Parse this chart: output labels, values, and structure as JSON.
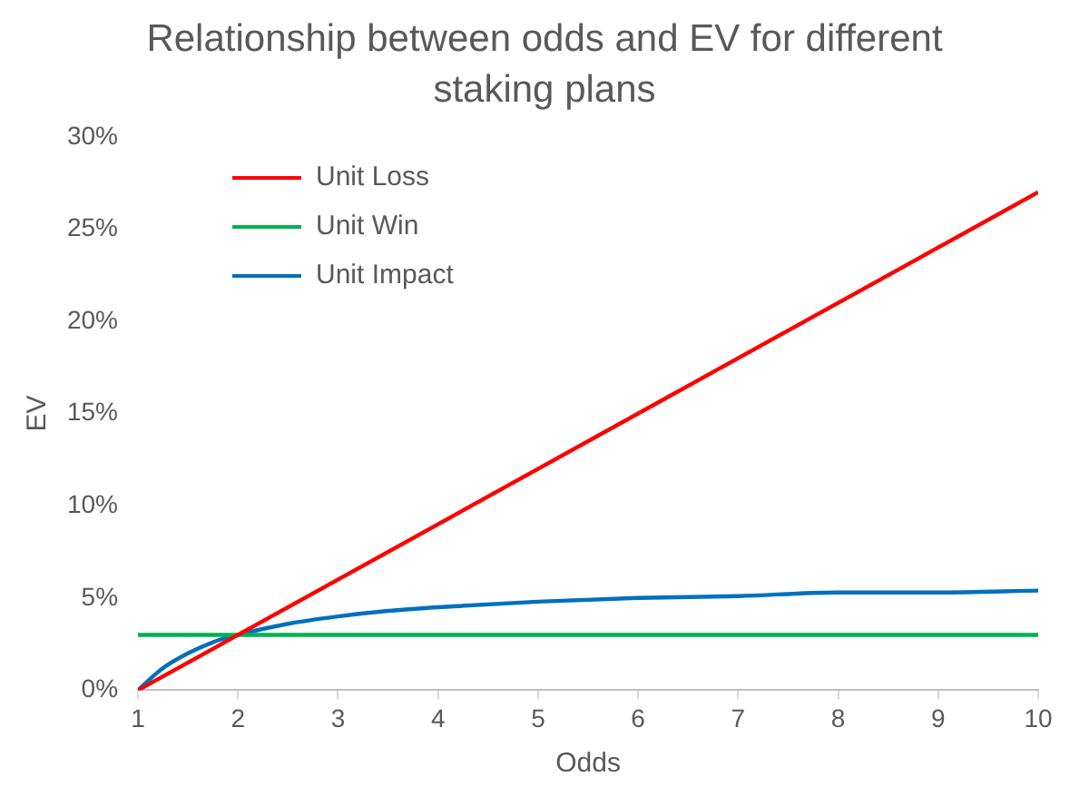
{
  "chart_data": {
    "type": "line",
    "title": "Relationship between odds and EV for different staking plans",
    "xlabel": "Odds",
    "ylabel": "EV",
    "xlim": [
      1,
      10
    ],
    "xticks": [
      1,
      2,
      3,
      4,
      5,
      6,
      7,
      8,
      9,
      10
    ],
    "ylim": [
      0,
      30
    ],
    "yticks": [
      {
        "value": 0,
        "label": "0%"
      },
      {
        "value": 5,
        "label": "5%"
      },
      {
        "value": 10,
        "label": "10%"
      },
      {
        "value": 15,
        "label": "15%"
      },
      {
        "value": 20,
        "label": "20%"
      },
      {
        "value": 25,
        "label": "25%"
      },
      {
        "value": 30,
        "label": "30%"
      }
    ],
    "grid": false,
    "legend": "top left",
    "marker": "none",
    "line_style": "solid",
    "series": [
      {
        "name": "Unit Loss",
        "color": "#ff0000",
        "x": [
          1,
          10
        ],
        "values": [
          0,
          27
        ]
      },
      {
        "name": "Unit Win",
        "color": "#00b050",
        "x": [
          1,
          10
        ],
        "values": [
          3,
          3
        ]
      },
      {
        "name": "Unit Impact",
        "color": "#0070c0",
        "x": [
          1,
          1.25,
          1.5,
          1.75,
          2,
          2.5,
          3,
          3.5,
          4,
          5,
          6,
          7,
          8,
          9,
          10
        ],
        "values": [
          0,
          1.2,
          2,
          2.6,
          3,
          3.6,
          4,
          4.3,
          4.5,
          4.8,
          5,
          5.1,
          5.3,
          5.3,
          5.4
        ]
      }
    ]
  }
}
